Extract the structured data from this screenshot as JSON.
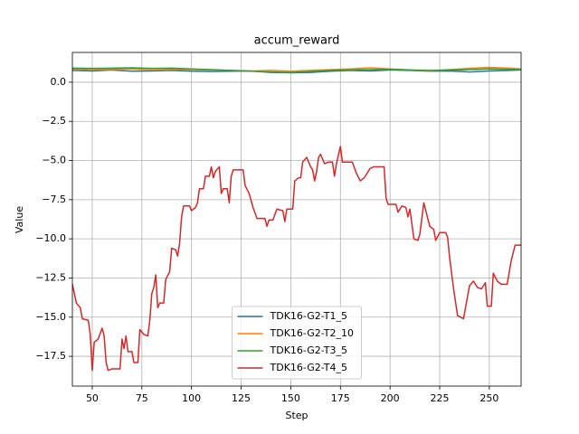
{
  "chart_data": {
    "type": "line",
    "title": "accum_reward",
    "x_label": "Step",
    "y_label": "Value",
    "xlim": [
      40,
      266
    ],
    "ylim": [
      -19.4,
      1.9
    ],
    "xticks": [
      50,
      75,
      100,
      125,
      150,
      175,
      200,
      225,
      250
    ],
    "yticks": [
      {
        "value": 0,
        "label": "0.0"
      },
      {
        "value": -2.5,
        "label": "−2.5"
      },
      {
        "value": -5,
        "label": "−5.0"
      },
      {
        "value": -7.5,
        "label": "−7.5"
      },
      {
        "value": -10,
        "label": "−10.0"
      },
      {
        "value": -12.5,
        "label": "−12.5"
      },
      {
        "value": -15,
        "label": "−15.0"
      },
      {
        "value": -17.5,
        "label": "−17.5"
      }
    ],
    "grid": true,
    "legend": "lower center",
    "series": [
      {
        "name": "TDK16-G2-T1_5",
        "color": "#1f77b4",
        "x": [
          40,
          50,
          60,
          70,
          80,
          90,
          100,
          110,
          120,
          130,
          140,
          150,
          160,
          170,
          180,
          190,
          200,
          210,
          220,
          230,
          240,
          250,
          260,
          266
        ],
        "values": [
          0.75,
          0.72,
          0.78,
          0.7,
          0.72,
          0.75,
          0.7,
          0.68,
          0.7,
          0.72,
          0.62,
          0.6,
          0.62,
          0.7,
          0.75,
          0.72,
          0.78,
          0.75,
          0.7,
          0.72,
          0.65,
          0.72,
          0.75,
          0.78
        ]
      },
      {
        "name": "TDK16-G2-T2_10",
        "color": "#ff7f0e",
        "x": [
          40,
          50,
          60,
          70,
          80,
          90,
          100,
          110,
          120,
          130,
          140,
          150,
          160,
          170,
          180,
          190,
          200,
          210,
          220,
          230,
          240,
          250,
          260,
          266
        ],
        "values": [
          0.85,
          0.8,
          0.82,
          0.85,
          0.78,
          0.82,
          0.8,
          0.78,
          0.75,
          0.72,
          0.75,
          0.7,
          0.75,
          0.8,
          0.85,
          0.92,
          0.85,
          0.78,
          0.72,
          0.8,
          0.88,
          0.95,
          0.9,
          0.85
        ]
      },
      {
        "name": "TDK16-G2-T3_5",
        "color": "#2ca02c",
        "x": [
          40,
          50,
          60,
          70,
          80,
          90,
          100,
          110,
          120,
          130,
          140,
          150,
          160,
          170,
          180,
          190,
          200,
          210,
          220,
          230,
          240,
          250,
          260,
          266
        ],
        "values": [
          0.9,
          0.88,
          0.9,
          0.92,
          0.88,
          0.9,
          0.85,
          0.8,
          0.75,
          0.7,
          0.65,
          0.62,
          0.68,
          0.75,
          0.78,
          0.8,
          0.82,
          0.78,
          0.75,
          0.78,
          0.8,
          0.85,
          0.82,
          0.8
        ]
      },
      {
        "name": "TDK16-G2-T4_5",
        "color": "#d62728",
        "x": [
          40,
          42,
          44,
          45,
          48,
          49,
          50,
          51,
          53,
          55,
          56,
          57,
          58,
          60,
          64,
          65,
          66,
          67,
          68,
          70,
          71,
          73,
          74,
          76,
          78,
          79,
          80,
          81,
          82,
          83,
          84,
          86,
          87,
          89,
          90,
          92,
          93,
          94,
          95,
          96,
          99,
          100,
          102,
          103,
          104,
          106,
          107,
          109,
          110,
          111,
          112,
          114,
          115,
          116,
          118,
          119,
          120,
          121,
          126,
          127,
          129,
          131,
          133,
          137,
          138,
          139,
          141,
          143,
          146,
          147,
          148,
          151,
          152,
          154,
          155,
          156,
          158,
          160,
          161,
          162,
          163,
          164,
          165,
          167,
          169,
          171,
          172,
          173,
          175,
          176,
          179,
          181,
          183,
          185,
          187,
          190,
          192,
          197,
          198,
          199,
          203,
          204,
          206,
          208,
          209,
          210,
          212,
          214,
          215,
          217,
          220,
          222,
          223,
          225,
          228,
          229,
          230,
          232,
          234,
          237,
          240,
          242,
          244,
          246,
          248,
          249,
          251,
          252,
          254,
          256,
          259,
          261,
          263,
          266
        ],
        "values": [
          -12.9,
          -14.1,
          -14.4,
          -15.1,
          -15.2,
          -16.1,
          -18.4,
          -16.6,
          -16.4,
          -15.7,
          -16.2,
          -17.9,
          -18.4,
          -18.3,
          -18.3,
          -16.4,
          -17.0,
          -16.2,
          -17.2,
          -17.2,
          -17.9,
          -17.9,
          -15.8,
          -16.1,
          -16.2,
          -15.2,
          -13.5,
          -13.1,
          -12.3,
          -14.4,
          -14.1,
          -14.1,
          -12.6,
          -12.1,
          -10.6,
          -10.7,
          -11.1,
          -10.3,
          -8.6,
          -7.9,
          -7.9,
          -8.2,
          -8.0,
          -7.7,
          -6.8,
          -6.8,
          -6.0,
          -6.0,
          -5.4,
          -6.1,
          -5.7,
          -5.4,
          -7.1,
          -6.8,
          -6.8,
          -7.7,
          -6.0,
          -5.6,
          -5.6,
          -6.6,
          -7.1,
          -8.0,
          -8.7,
          -8.7,
          -9.2,
          -8.8,
          -8.8,
          -8.1,
          -8.2,
          -8.9,
          -8.1,
          -8.1,
          -6.3,
          -6.1,
          -6.1,
          -5.1,
          -4.8,
          -5.4,
          -5.6,
          -6.3,
          -5.7,
          -4.8,
          -4.6,
          -5.2,
          -5.1,
          -5.1,
          -6.0,
          -5.2,
          -4.1,
          -5.1,
          -5.1,
          -5.1,
          -5.8,
          -6.3,
          -6.1,
          -5.5,
          -5.4,
          -5.4,
          -7.4,
          -7.8,
          -7.8,
          -8.3,
          -7.9,
          -8.0,
          -8.6,
          -8.1,
          -10.0,
          -10.1,
          -9.7,
          -7.7,
          -9.2,
          -9.4,
          -10.1,
          -9.6,
          -9.6,
          -9.9,
          -11.2,
          -13.2,
          -14.9,
          -15.1,
          -13.0,
          -12.7,
          -13.1,
          -13.2,
          -12.8,
          -14.3,
          -14.3,
          -12.2,
          -12.7,
          -12.9,
          -12.9,
          -11.4,
          -10.4,
          -10.4
        ]
      }
    ]
  }
}
